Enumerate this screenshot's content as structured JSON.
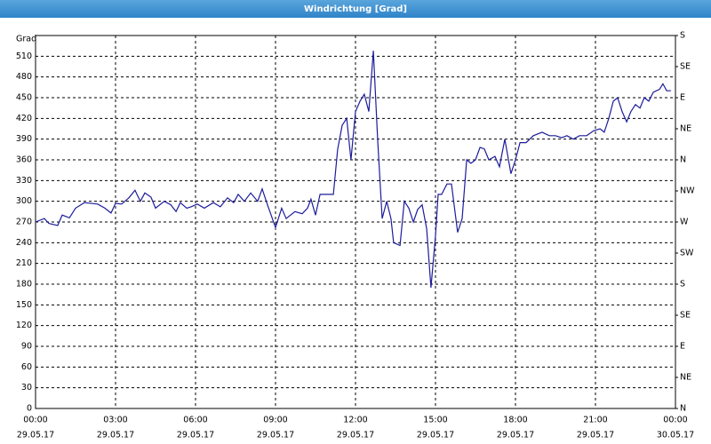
{
  "chart_data": {
    "type": "line",
    "title": "Windrichtung [Grad]",
    "ylabel": "Grad",
    "x": [
      0,
      0.33,
      0.5,
      0.83,
      1,
      1.27,
      1.5,
      1.83,
      2.33,
      2.6,
      2.83,
      3,
      3.23,
      3.5,
      3.73,
      3.93,
      4.1,
      4.33,
      4.5,
      4.83,
      5.07,
      5.27,
      5.43,
      5.67,
      5.83,
      6.07,
      6.33,
      6.67,
      6.93,
      7.2,
      7.43,
      7.6,
      7.83,
      8.07,
      8.33,
      8.5,
      8.67,
      9,
      9.23,
      9.4,
      9.73,
      10,
      10.2,
      10.33,
      10.5,
      10.67,
      11,
      11.17,
      11.33,
      11.5,
      11.67,
      11.83,
      12,
      12.17,
      12.33,
      12.5,
      12.67,
      12.83,
      13,
      13.17,
      13.33,
      13.43,
      13.67,
      13.83,
      14,
      14.17,
      14.33,
      14.5,
      14.67,
      14.83,
      15,
      15.1,
      15.23,
      15.43,
      15.6,
      15.83,
      16,
      16.17,
      16.33,
      16.5,
      16.67,
      16.83,
      17,
      17.23,
      17.4,
      17.6,
      17.83,
      18,
      18.17,
      18.4,
      18.67,
      19,
      19.27,
      19.5,
      19.73,
      19.93,
      20.17,
      20.4,
      20.67,
      20.93,
      21.17,
      21.33,
      21.5,
      21.67,
      21.83,
      22,
      22.17,
      22.33,
      22.5,
      22.67,
      22.83,
      23,
      23.17,
      23.4,
      23.53,
      23.67,
      23.83
    ],
    "series": [
      {
        "name": "Windrichtung",
        "color": "#1c1c9c",
        "values": [
          270,
          275,
          268,
          265,
          280,
          276,
          290,
          298,
          296,
          290,
          283,
          297,
          296,
          305,
          316,
          300,
          312,
          306,
          290,
          300,
          295,
          285,
          298,
          290,
          292,
          296,
          290,
          298,
          292,
          305,
          298,
          310,
          300,
          312,
          300,
          318,
          298,
          262,
          290,
          275,
          285,
          282,
          290,
          303,
          280,
          310,
          310,
          310,
          375,
          410,
          420,
          360,
          430,
          445,
          455,
          430,
          518,
          390,
          275,
          300,
          275,
          240,
          236,
          300,
          290,
          270,
          288,
          295,
          260,
          175,
          250,
          310,
          310,
          325,
          325,
          255,
          275,
          360,
          355,
          360,
          378,
          376,
          360,
          365,
          350,
          390,
          340,
          360,
          385,
          385,
          395,
          400,
          395,
          395,
          392,
          395,
          390,
          395,
          395,
          402,
          405,
          400,
          420,
          445,
          450,
          430,
          415,
          430,
          440,
          435,
          450,
          445,
          458,
          462,
          470,
          460,
          460
        ]
      }
    ],
    "xlim": [
      0,
      24
    ],
    "xticks": [
      {
        "value": 0,
        "label": "00:00"
      },
      {
        "value": 3,
        "label": "03:00"
      },
      {
        "value": 6,
        "label": "06:00"
      },
      {
        "value": 9,
        "label": "09:00"
      },
      {
        "value": 12,
        "label": "12:00"
      },
      {
        "value": 15,
        "label": "15:00"
      },
      {
        "value": 18,
        "label": "18:00"
      },
      {
        "value": 21,
        "label": "21:00"
      },
      {
        "value": 24,
        "label": "00:00"
      }
    ],
    "xtick_dates": [
      "29.05.17",
      "29.05.17",
      "29.05.17",
      "29.05.17",
      "29.05.17",
      "29.05.17",
      "29.05.17",
      "29.05.17",
      "30.05.17"
    ],
    "ylim": [
      0,
      540
    ],
    "yticks": [
      0,
      30,
      60,
      90,
      120,
      150,
      180,
      210,
      240,
      270,
      300,
      330,
      360,
      390,
      420,
      450,
      480,
      510
    ],
    "y2lim": [
      0,
      540
    ],
    "y2ticks": [
      {
        "value": 0,
        "label": "N"
      },
      {
        "value": 45,
        "label": "NE"
      },
      {
        "value": 90,
        "label": "E"
      },
      {
        "value": 135,
        "label": "SE"
      },
      {
        "value": 180,
        "label": "S"
      },
      {
        "value": 225,
        "label": "SW"
      },
      {
        "value": 270,
        "label": "W"
      },
      {
        "value": 315,
        "label": "NW"
      },
      {
        "value": 360,
        "label": "N"
      },
      {
        "value": 405,
        "label": "NE"
      },
      {
        "value": 450,
        "label": "E"
      },
      {
        "value": 495,
        "label": "SE"
      },
      {
        "value": 540,
        "label": "S"
      }
    ],
    "grid": true
  }
}
